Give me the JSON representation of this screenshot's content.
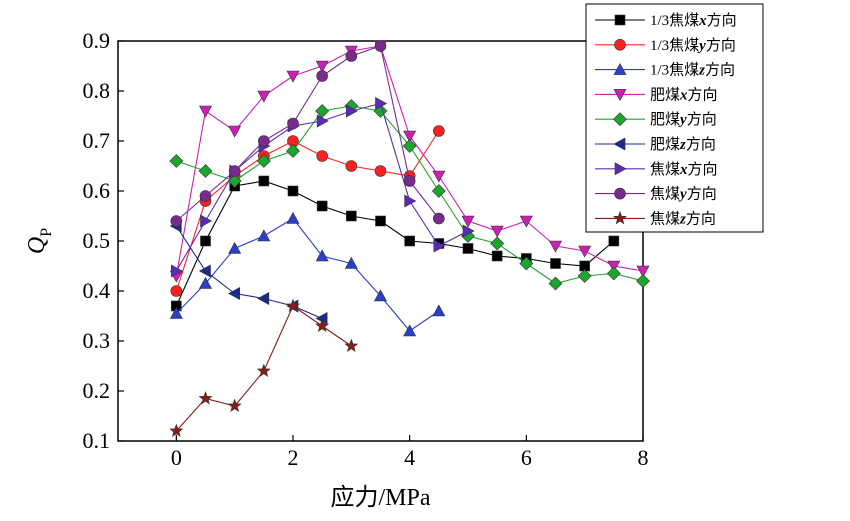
{
  "chart_data": {
    "type": "line",
    "title": "",
    "xlabel": "应力/MPa",
    "ylabel_main": "Q",
    "ylabel_sub": "P",
    "xlim": [
      -1,
      8
    ],
    "ylim": [
      0.1,
      0.9
    ],
    "xticks": [
      0,
      2,
      4,
      6,
      8
    ],
    "xtick_labels": [
      "0",
      "2",
      "4",
      "6",
      "8"
    ],
    "yticks": [
      0.1,
      0.2,
      0.3,
      0.4,
      0.5,
      0.6,
      0.7,
      0.8,
      0.9
    ],
    "ytick_labels": [
      "0.1",
      "0.2",
      "0.3",
      "0.4",
      "0.5",
      "0.6",
      "0.7",
      "0.8",
      "0.9"
    ],
    "grid": false,
    "legend_position": "top-right",
    "series": [
      {
        "name": "1/3焦煤x方向",
        "legend_parts": [
          "1/3焦煤",
          "x",
          "方向"
        ],
        "color": "#000000",
        "marker": "square",
        "points": [
          [
            0,
            0.37
          ],
          [
            0.5,
            0.5
          ],
          [
            1,
            0.61
          ],
          [
            1.5,
            0.62
          ],
          [
            2,
            0.6
          ],
          [
            2.5,
            0.57
          ],
          [
            3,
            0.55
          ],
          [
            3.5,
            0.54
          ],
          [
            4,
            0.5
          ],
          [
            4.5,
            0.495
          ],
          [
            5,
            0.485
          ],
          [
            5.5,
            0.47
          ],
          [
            6,
            0.465
          ],
          [
            6.5,
            0.455
          ],
          [
            7,
            0.45
          ],
          [
            7.5,
            0.5
          ]
        ]
      },
      {
        "name": "1/3焦煤y方向",
        "legend_parts": [
          "1/3焦煤",
          "y",
          "方向"
        ],
        "color": "#ff2020",
        "marker": "circle",
        "points": [
          [
            0,
            0.4
          ],
          [
            0.5,
            0.58
          ],
          [
            1,
            0.63
          ],
          [
            1.5,
            0.67
          ],
          [
            2,
            0.7
          ],
          [
            2.5,
            0.67
          ],
          [
            3,
            0.65
          ],
          [
            3.5,
            0.64
          ],
          [
            4,
            0.63
          ],
          [
            4.5,
            0.72
          ]
        ]
      },
      {
        "name": "1/3焦煤z方向",
        "legend_parts": [
          "1/3焦煤",
          "z",
          "方向"
        ],
        "color": "#2b3fc8",
        "marker": "triangle-up",
        "points": [
          [
            0,
            0.355
          ],
          [
            0.5,
            0.415
          ],
          [
            1,
            0.485
          ],
          [
            1.5,
            0.51
          ],
          [
            2,
            0.545
          ],
          [
            2.5,
            0.47
          ],
          [
            3,
            0.455
          ],
          [
            3.5,
            0.39
          ],
          [
            4,
            0.32
          ],
          [
            4.5,
            0.36
          ]
        ]
      },
      {
        "name": "肥煤x方向",
        "legend_parts": [
          "肥煤",
          "x",
          "方向"
        ],
        "color": "#cc1fb3",
        "marker": "triangle-down",
        "points": [
          [
            0,
            0.43
          ],
          [
            0.5,
            0.76
          ],
          [
            1,
            0.72
          ],
          [
            1.5,
            0.79
          ],
          [
            2,
            0.83
          ],
          [
            2.5,
            0.85
          ],
          [
            3,
            0.88
          ],
          [
            3.5,
            0.89
          ],
          [
            4,
            0.71
          ],
          [
            4.5,
            0.63
          ],
          [
            5,
            0.54
          ],
          [
            5.5,
            0.52
          ],
          [
            6,
            0.54
          ],
          [
            6.5,
            0.49
          ],
          [
            7,
            0.48
          ],
          [
            7.5,
            0.45
          ],
          [
            8,
            0.44
          ]
        ]
      },
      {
        "name": "肥煤y方向",
        "legend_parts": [
          "肥煤",
          "y",
          "方向"
        ],
        "color": "#1da62d",
        "marker": "diamond",
        "points": [
          [
            0,
            0.66
          ],
          [
            0.5,
            0.64
          ],
          [
            1,
            0.62
          ],
          [
            1.5,
            0.66
          ],
          [
            2,
            0.68
          ],
          [
            2.5,
            0.76
          ],
          [
            3,
            0.77
          ],
          [
            3.5,
            0.76
          ],
          [
            4,
            0.69
          ],
          [
            4.5,
            0.6
          ],
          [
            5,
            0.51
          ],
          [
            5.5,
            0.495
          ],
          [
            6,
            0.455
          ],
          [
            6.5,
            0.415
          ],
          [
            7,
            0.43
          ],
          [
            7.5,
            0.435
          ],
          [
            8,
            0.42
          ]
        ]
      },
      {
        "name": "肥煤z方向",
        "legend_parts": [
          "肥煤",
          "z",
          "方向"
        ],
        "color": "#1b2a8c",
        "marker": "triangle-left",
        "points": [
          [
            0,
            0.53
          ],
          [
            0.5,
            0.44
          ],
          [
            1,
            0.395
          ],
          [
            1.5,
            0.385
          ],
          [
            2,
            0.37
          ],
          [
            2.5,
            0.345
          ]
        ]
      },
      {
        "name": "焦煤x方向",
        "legend_parts": [
          "焦煤",
          "x",
          "方向"
        ],
        "color": "#5a2bb8",
        "marker": "triangle-right",
        "points": [
          [
            0,
            0.44
          ],
          [
            0.5,
            0.54
          ],
          [
            1,
            0.64
          ],
          [
            1.5,
            0.69
          ],
          [
            2,
            0.73
          ],
          [
            2.5,
            0.74
          ],
          [
            3,
            0.76
          ],
          [
            3.5,
            0.775
          ],
          [
            4,
            0.58
          ],
          [
            4.5,
            0.49
          ],
          [
            5,
            0.52
          ]
        ]
      },
      {
        "name": "焦煤y方向",
        "legend_parts": [
          "焦煤",
          "y",
          "方向"
        ],
        "color": "#7a2a8c",
        "marker": "circle",
        "points": [
          [
            0,
            0.54
          ],
          [
            0.5,
            0.59
          ],
          [
            1,
            0.64
          ],
          [
            1.5,
            0.7
          ],
          [
            2,
            0.735
          ],
          [
            2.5,
            0.83
          ],
          [
            3,
            0.87
          ],
          [
            3.5,
            0.89
          ],
          [
            4,
            0.62
          ],
          [
            4.5,
            0.545
          ]
        ]
      },
      {
        "name": "焦煤z方向",
        "legend_parts": [
          "焦煤",
          "z",
          "方向"
        ],
        "color": "#8b1a1a",
        "marker": "star",
        "points": [
          [
            0,
            0.12
          ],
          [
            0.5,
            0.185
          ],
          [
            1,
            0.17
          ],
          [
            1.5,
            0.24
          ],
          [
            2,
            0.37
          ],
          [
            2.5,
            0.33
          ],
          [
            3,
            0.29
          ]
        ]
      }
    ]
  }
}
